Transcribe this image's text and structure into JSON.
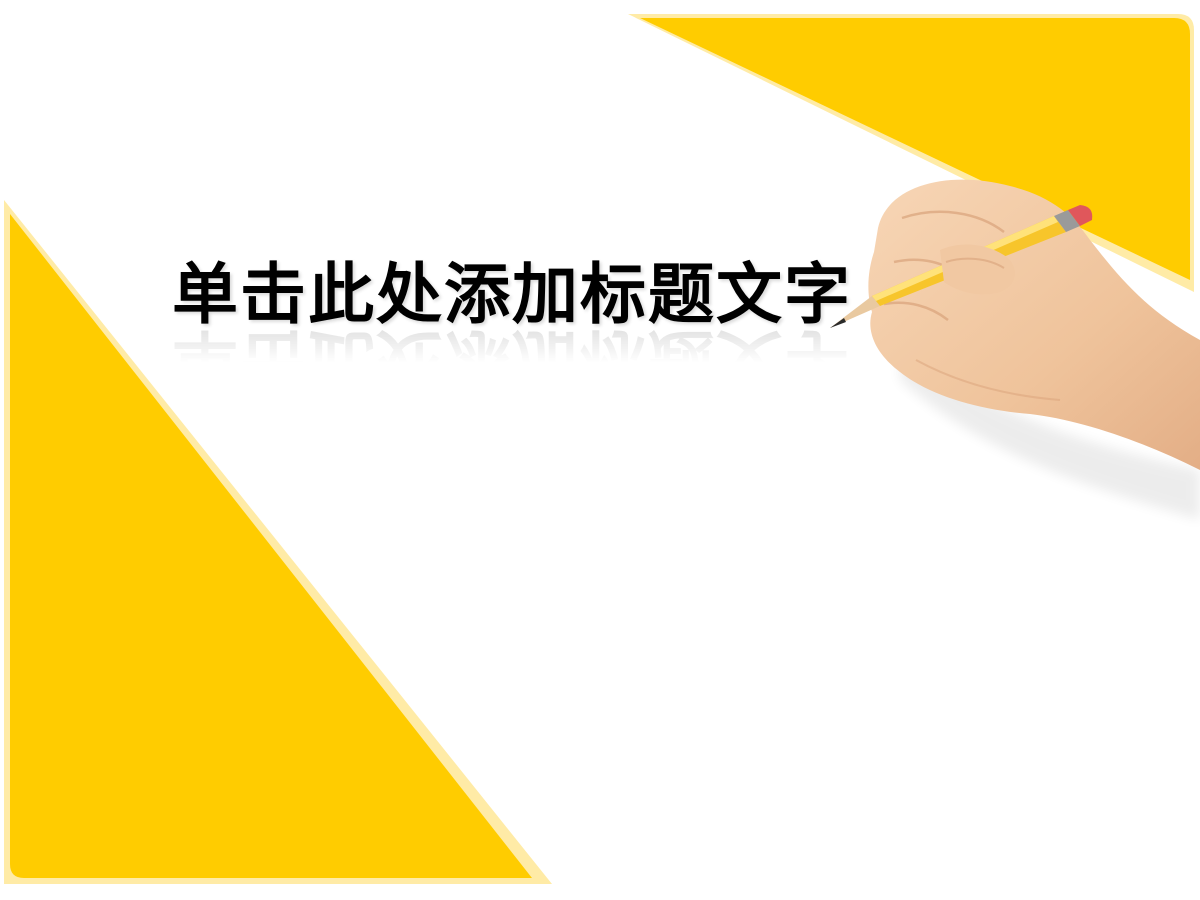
{
  "slide": {
    "title": "单击此处添加标题文字"
  },
  "colors": {
    "accent_yellow": "#FFCC00",
    "accent_light_yellow": "#FFEBA6",
    "background": "#FFFFFF",
    "title_text": "#000000",
    "skin": "#F2CBA7",
    "pencil_body": "#F7C52B",
    "pencil_eraser": "#E0575B"
  },
  "icons": {
    "decoration": "hand-with-pencil-icon"
  }
}
